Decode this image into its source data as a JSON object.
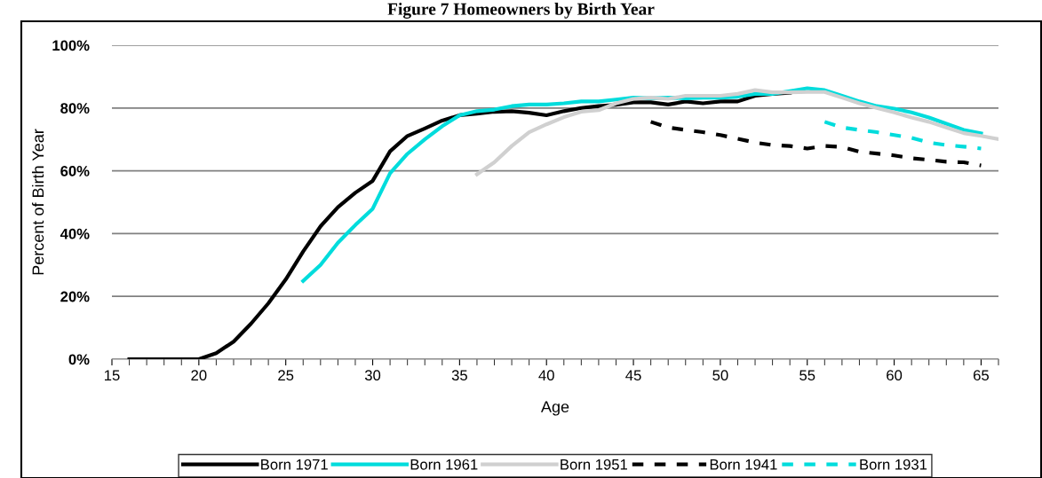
{
  "chart_data": {
    "type": "line",
    "title": "Figure 7 Homeowners by Birth Year",
    "xlabel": "Age",
    "ylabel": "Percent of Birth Year",
    "xlim": [
      15,
      66
    ],
    "xticks": [
      15,
      20,
      25,
      30,
      35,
      40,
      45,
      50,
      55,
      60,
      65
    ],
    "ylim": [
      0,
      100
    ],
    "yticks": [
      {
        "value": 0,
        "label": "0%"
      },
      {
        "value": 20,
        "label": "20%"
      },
      {
        "value": 40,
        "label": "40%"
      },
      {
        "value": 60,
        "label": "60%"
      },
      {
        "value": 80,
        "label": "80%"
      },
      {
        "value": 100,
        "label": "100%"
      }
    ],
    "grid": "y",
    "legend": "bottom",
    "marker": "none",
    "series": [
      {
        "name": "Born 1971",
        "color": "#000000",
        "line_style": "solid",
        "x": [
          16,
          17,
          18,
          19,
          20,
          21,
          22,
          23,
          24,
          25,
          26,
          27,
          28,
          29,
          30,
          31,
          32,
          33,
          34,
          35,
          36,
          37,
          38,
          39,
          40,
          41,
          42,
          43,
          44,
          45,
          46,
          47,
          48,
          49,
          50,
          51,
          52,
          53,
          54
        ],
        "values": [
          0,
          0,
          0,
          0,
          0,
          1.9,
          5.6,
          11.3,
          17.8,
          25.4,
          34.3,
          42.3,
          48.4,
          53,
          56.8,
          66.2,
          71.1,
          73.5,
          76,
          77.7,
          78.2,
          78.8,
          79,
          78.5,
          77.7,
          79,
          80,
          80.6,
          81,
          81.8,
          81.8,
          81.1,
          82.1,
          81.5,
          82.1,
          82.1,
          83.9,
          84.5,
          84.9
        ]
      },
      {
        "name": "Born 1961",
        "color": "#00dcdc",
        "line_style": "solid",
        "x": [
          26,
          27,
          28,
          29,
          30,
          31,
          32,
          33,
          34,
          35,
          36,
          37,
          38,
          39,
          40,
          41,
          42,
          43,
          44,
          45,
          46,
          47,
          48,
          49,
          50,
          51,
          52,
          53,
          54,
          55,
          56,
          57,
          58,
          59,
          60,
          61,
          62,
          63,
          64,
          65
        ],
        "values": [
          24.9,
          30,
          37.1,
          42.7,
          47.9,
          59.2,
          65.4,
          70,
          74.2,
          77.7,
          79,
          79.5,
          80.6,
          81.1,
          81.1,
          81.5,
          82.1,
          82.1,
          82.7,
          83.3,
          83.1,
          83.3,
          83.1,
          83.3,
          83.3,
          83.6,
          84.5,
          84.5,
          85.4,
          86.3,
          85.7,
          83.9,
          82.1,
          80.6,
          79.8,
          78.6,
          77,
          75,
          73,
          71.9
        ]
      },
      {
        "name": "Born 1951",
        "color": "#d0d0d0",
        "line_style": "solid",
        "x": [
          36,
          37,
          38,
          39,
          40,
          41,
          42,
          43,
          44,
          45,
          46,
          47,
          48,
          49,
          50,
          51,
          52,
          53,
          54,
          55,
          56,
          57,
          58,
          59,
          60,
          61,
          62,
          63,
          64,
          65,
          66
        ],
        "values": [
          58.9,
          62.7,
          67.9,
          72.3,
          74.8,
          77.1,
          78.8,
          79.3,
          81.5,
          82.9,
          83.3,
          82.9,
          83.9,
          83.9,
          83.9,
          84.5,
          85.7,
          85,
          85,
          85.1,
          85.1,
          83.3,
          81.5,
          80,
          78.6,
          77,
          75.6,
          73.8,
          72,
          71.1,
          70.1
        ]
      },
      {
        "name": "Born 1941",
        "color": "#000000",
        "line_style": "dashed",
        "x": [
          46,
          47,
          48,
          49,
          50,
          51,
          52,
          53,
          54,
          55,
          56,
          57,
          58,
          59,
          60,
          61,
          62,
          63,
          64,
          65
        ],
        "values": [
          75.6,
          73.8,
          73,
          72.3,
          71.4,
          70.2,
          69,
          68.2,
          67.9,
          67.1,
          67.9,
          67.6,
          66.1,
          65.5,
          64.9,
          64,
          63.5,
          62.9,
          62.7,
          61.7
        ]
      },
      {
        "name": "Born 1931",
        "color": "#00dcdc",
        "line_style": "dashed",
        "x": [
          56,
          57,
          58,
          59,
          60,
          61,
          62,
          63,
          64,
          65
        ],
        "values": [
          75.6,
          73.8,
          73,
          72.3,
          71.4,
          70.5,
          69,
          68.2,
          67.7,
          67.1
        ]
      }
    ]
  }
}
